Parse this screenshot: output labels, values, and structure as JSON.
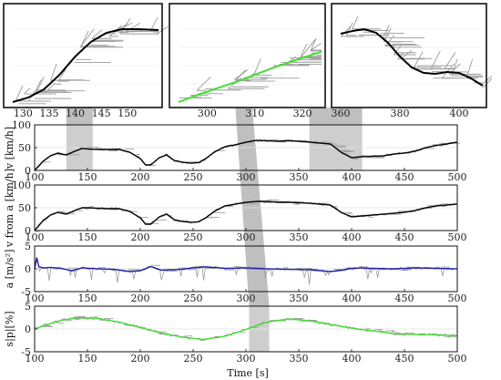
{
  "colors": {
    "measured": "#9a9a9a",
    "fit_black": "#000000",
    "fit_blue": "#1f1fa8",
    "fit_green": "#44dd33",
    "shade": "#c6c6c6",
    "connector": "#8a8a8a"
  },
  "xlabel": "Time [s]",
  "chart_data": [
    {
      "type": "line",
      "id": "velocity",
      "ylabel": "v [km/h]",
      "xlim": [
        100,
        500
      ],
      "ylim": [
        0,
        100
      ],
      "xticks": [
        "100",
        "150",
        "200",
        "250",
        "300",
        "350",
        "400",
        "450",
        "500"
      ],
      "yticks": [
        "0",
        "50",
        "100"
      ],
      "shaded_intervals": [
        [
          130,
          155
        ],
        [
          360,
          410
        ]
      ],
      "series": [
        {
          "style": "fit_black",
          "x": [
            100,
            108,
            115,
            122,
            130,
            138,
            145,
            152,
            160,
            170,
            180,
            190,
            200,
            205,
            210,
            218,
            225,
            232,
            240,
            248,
            255,
            262,
            270,
            280,
            290,
            300,
            310,
            320,
            330,
            340,
            350,
            360,
            370,
            380,
            390,
            400,
            410,
            420,
            430,
            440,
            450,
            460,
            470,
            480,
            490,
            500
          ],
          "values": [
            0,
            20,
            32,
            38,
            34,
            42,
            48,
            47,
            46,
            46,
            46,
            40,
            26,
            12,
            12,
            28,
            34,
            22,
            18,
            16,
            17,
            26,
            40,
            52,
            56,
            62,
            66,
            65,
            64,
            65,
            64,
            62,
            60,
            58,
            40,
            28,
            30,
            31,
            32,
            36,
            38,
            42,
            50,
            55,
            58,
            62
          ]
        }
      ]
    },
    {
      "type": "line",
      "id": "velocity-from-a",
      "ylabel": "v from a [km/h]",
      "xlim": [
        100,
        500
      ],
      "ylim": [
        0,
        100
      ],
      "xticks": [
        "100",
        "150",
        "200",
        "250",
        "300",
        "350",
        "400",
        "450",
        "500"
      ],
      "yticks": [
        "0",
        "50",
        "100"
      ],
      "series": [
        {
          "style": "fit_black",
          "x": [
            100,
            108,
            115,
            122,
            130,
            138,
            145,
            152,
            160,
            170,
            180,
            190,
            200,
            205,
            210,
            218,
            225,
            232,
            240,
            248,
            255,
            262,
            270,
            280,
            290,
            300,
            310,
            320,
            330,
            340,
            350,
            360,
            370,
            380,
            390,
            400,
            410,
            420,
            430,
            440,
            450,
            460,
            470,
            480,
            490,
            500
          ],
          "values": [
            0,
            22,
            34,
            40,
            36,
            44,
            50,
            50,
            49,
            48,
            48,
            42,
            28,
            14,
            14,
            30,
            36,
            24,
            20,
            18,
            19,
            28,
            42,
            54,
            58,
            62,
            64,
            64,
            62,
            62,
            61,
            60,
            58,
            56,
            40,
            30,
            32,
            34,
            36,
            38,
            40,
            44,
            50,
            54,
            56,
            58
          ]
        }
      ]
    },
    {
      "type": "line",
      "id": "acceleration",
      "ylabel": "a [m/s²]",
      "xlim": [
        100,
        500
      ],
      "ylim": [
        -5,
        5
      ],
      "xticks": [
        "100",
        "150",
        "200",
        "250",
        "300",
        "350",
        "400",
        "450",
        "500"
      ],
      "yticks": [
        "-5",
        "0",
        "5"
      ],
      "series": [
        {
          "style": "fit_blue",
          "x": [
            100,
            102,
            104,
            108,
            115,
            125,
            135,
            145,
            160,
            175,
            190,
            200,
            210,
            220,
            230,
            240,
            250,
            260,
            270,
            280,
            300,
            320,
            340,
            360,
            380,
            390,
            400,
            410,
            420,
            440,
            460,
            480,
            500
          ],
          "values": [
            0,
            2.5,
            0.5,
            0.2,
            0.3,
            0.1,
            -0.4,
            0.2,
            0.0,
            -0.1,
            -0.6,
            -0.4,
            0.5,
            -0.3,
            -0.2,
            -0.1,
            0.2,
            0.4,
            0.3,
            0.1,
            0.2,
            0.0,
            -0.1,
            -0.2,
            -0.6,
            -0.3,
            0.1,
            0.2,
            0.1,
            0.0,
            0.2,
            0.1,
            0.0
          ]
        }
      ]
    },
    {
      "type": "line",
      "id": "slope",
      "ylabel": "s|p|[%]",
      "xlim": [
        100,
        500
      ],
      "ylim": [
        -5,
        5
      ],
      "xticks": [
        "100",
        "150",
        "200",
        "250",
        "300",
        "350",
        "400",
        "450",
        "500"
      ],
      "yticks": [
        "-5",
        "0",
        "5"
      ],
      "shaded_intervals": [
        [
          303,
          322
        ]
      ],
      "series": [
        {
          "style": "fit_green",
          "x": [
            100,
            120,
            140,
            160,
            180,
            200,
            220,
            240,
            260,
            280,
            300,
            320,
            340,
            360,
            380,
            400,
            420,
            440,
            460,
            480,
            500
          ],
          "values": [
            0,
            1.6,
            2.5,
            2.3,
            1.5,
            0.3,
            -0.9,
            -1.8,
            -2.3,
            -1.6,
            -0.1,
            1.5,
            2.2,
            1.8,
            1.0,
            0.2,
            -0.4,
            -1.0,
            -1.2,
            -1.3,
            -1.5
          ]
        }
      ]
    },
    {
      "type": "line",
      "id": "inset-1",
      "xlim": [
        128,
        156
      ],
      "xticks": [
        "130",
        "135",
        "140",
        "145",
        "150"
      ],
      "series": [
        {
          "style": "fit_black",
          "x": [
            128,
            131,
            134,
            137,
            140,
            143,
            146,
            149,
            152,
            156
          ],
          "values": [
            0.0,
            0.05,
            0.14,
            0.3,
            0.5,
            0.66,
            0.76,
            0.8,
            0.8,
            0.79
          ]
        }
      ]
    },
    {
      "type": "line",
      "id": "inset-2",
      "xlim": [
        294,
        324
      ],
      "xticks": [
        "300",
        "310",
        "320"
      ],
      "series": [
        {
          "style": "fit_green",
          "x": [
            294,
            298,
            302,
            306,
            310,
            314,
            318,
            322,
            324
          ],
          "values": [
            0.0,
            0.08,
            0.15,
            0.22,
            0.3,
            0.38,
            0.45,
            0.52,
            0.55
          ]
        }
      ]
    },
    {
      "type": "line",
      "id": "inset-3",
      "xlim": [
        360,
        408
      ],
      "xticks": [
        "360",
        "380",
        "400"
      ],
      "series": [
        {
          "style": "fit_black",
          "x": [
            360,
            364,
            368,
            372,
            376,
            380,
            384,
            388,
            392,
            396,
            400,
            404,
            408
          ],
          "values": [
            0.75,
            0.78,
            0.8,
            0.76,
            0.65,
            0.5,
            0.38,
            0.32,
            0.31,
            0.33,
            0.32,
            0.26,
            0.18
          ]
        }
      ]
    }
  ]
}
